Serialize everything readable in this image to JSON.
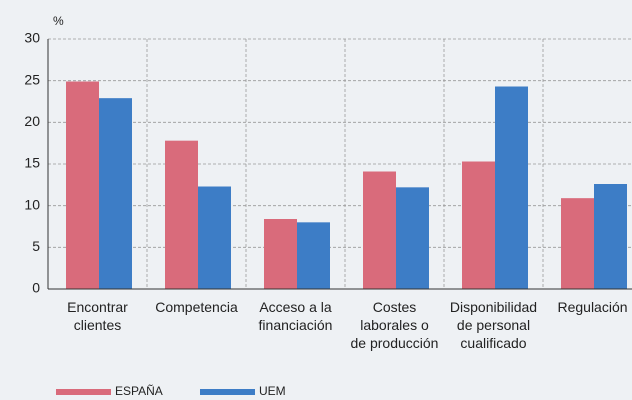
{
  "chart_data": {
    "type": "bar",
    "y_unit": "%",
    "categories": [
      "Encontrar\nclientes",
      "Competencia",
      "Acceso a la\nfinanciación",
      "Costes\nlaborales o\nde producción",
      "Disponibilidad\nde personal\ncualificado",
      "Regulación"
    ],
    "series": [
      {
        "name": "ESPAÑA",
        "color": "#d96b7b",
        "values": [
          24.9,
          17.8,
          8.4,
          14.1,
          15.3,
          10.9
        ]
      },
      {
        "name": "UEM",
        "color": "#3d7dc6",
        "values": [
          22.9,
          12.3,
          8.0,
          12.2,
          24.3,
          12.6
        ]
      }
    ],
    "ylim": [
      0,
      30
    ],
    "yticks": [
      0,
      5,
      10,
      15,
      20,
      25,
      30
    ],
    "grid": true,
    "legend": "bottom"
  }
}
